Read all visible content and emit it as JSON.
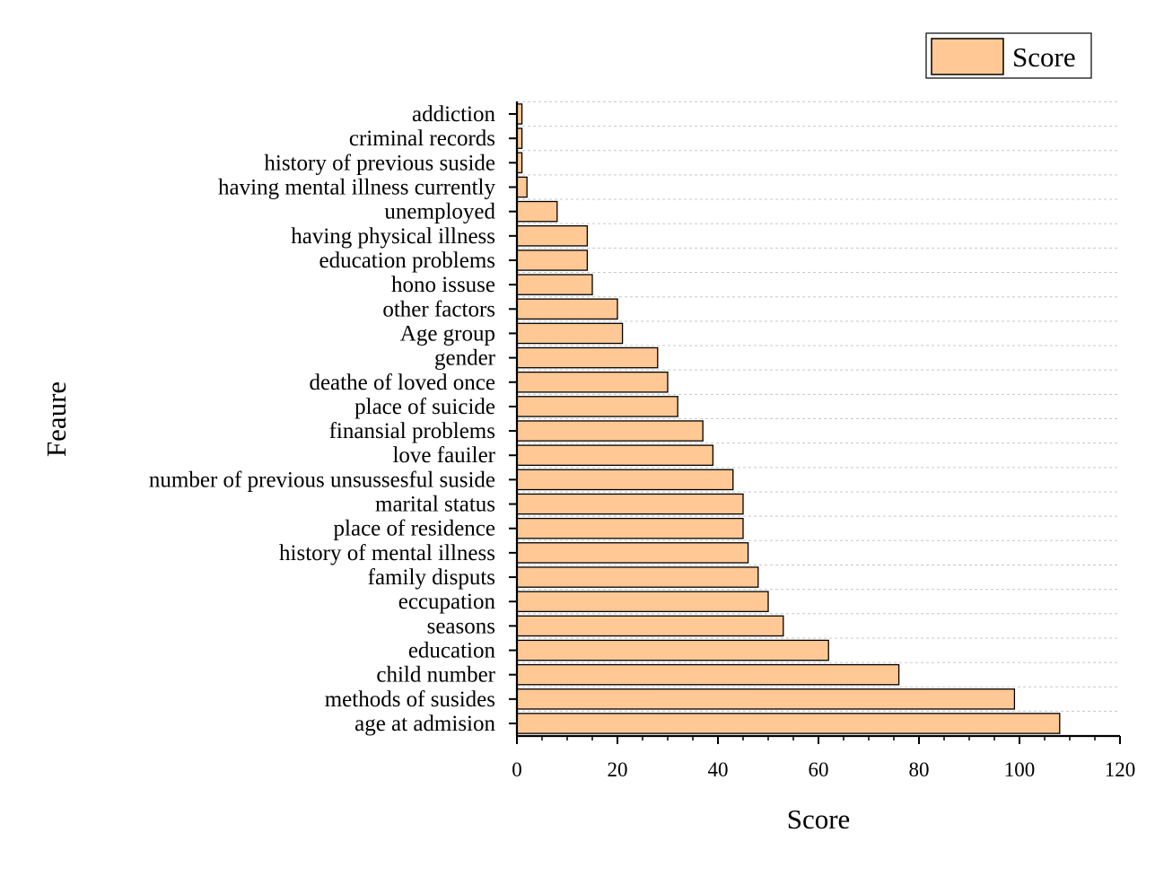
{
  "chart_data": {
    "type": "bar",
    "orientation": "horizontal",
    "title": "",
    "xlabel": "Score",
    "ylabel": "Feaure",
    "xlim": [
      0,
      120
    ],
    "x_ticks": [
      0,
      20,
      40,
      60,
      80,
      100,
      120
    ],
    "grid": "horizontal dashed",
    "legend_position": "top-right",
    "bar_color": "#FFC895",
    "series": [
      {
        "name": "Score",
        "categories": [
          "age at admision",
          "methods of susides",
          "child number",
          "education",
          "seasons",
          "eccupation",
          "family disputs",
          "history of mental illness",
          "place of residence",
          "marital status",
          "number of previous unsussesful suside",
          "love fauiler",
          "finansial problems",
          "place of suicide",
          "deathe of loved once",
          "gender",
          "Age group",
          "other factors",
          "hono issuse",
          "education problems",
          "having physical illness",
          "unemployed",
          "having mental illness currently",
          "history of previous suside",
          "criminal records",
          "addiction"
        ],
        "values": [
          108,
          99,
          76,
          62,
          53,
          50,
          48,
          46,
          45,
          45,
          43,
          39,
          37,
          32,
          30,
          28,
          21,
          20,
          15,
          14,
          14,
          8,
          2,
          1,
          1,
          1
        ]
      }
    ]
  }
}
